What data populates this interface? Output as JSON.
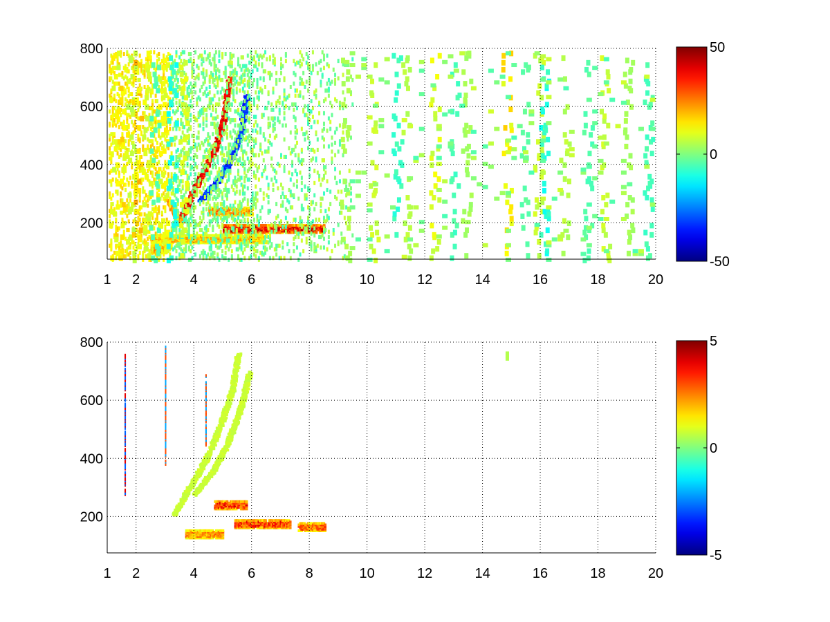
{
  "chart_data": [
    {
      "type": "heatmap",
      "title": "",
      "xlabel": "",
      "ylabel": "",
      "xlim": [
        1,
        20
      ],
      "ylim": [
        75,
        800
      ],
      "x_ticks": [
        1,
        2,
        4,
        6,
        8,
        10,
        12,
        14,
        16,
        18,
        20
      ],
      "y_ticks": [
        200,
        400,
        600,
        800
      ],
      "grid": true,
      "colormap": "jet",
      "colorbar": {
        "min": -50,
        "max": 50,
        "ticks": [
          50,
          0,
          -50
        ],
        "position": "right"
      },
      "features": [
        {
          "kind": "ridge",
          "value": 40,
          "points": [
            [
              3.5,
              210
            ],
            [
              3.9,
              300
            ],
            [
              4.3,
              380
            ],
            [
              4.7,
              460
            ],
            [
              5.0,
              560
            ],
            [
              5.2,
              700
            ]
          ]
        },
        {
          "kind": "ridge",
          "value": 25,
          "points": [
            [
              3.1,
              280
            ],
            [
              3.4,
              220
            ],
            [
              3.6,
              210
            ]
          ]
        },
        {
          "kind": "ridge",
          "value": -35,
          "points": [
            [
              4.2,
              280
            ],
            [
              4.8,
              350
            ],
            [
              5.3,
              430
            ],
            [
              5.6,
              520
            ],
            [
              5.8,
              640
            ]
          ]
        },
        {
          "kind": "band",
          "value": 25,
          "x": [
            4.5,
            6.0
          ],
          "y": 245
        },
        {
          "kind": "band",
          "value": 40,
          "x": [
            5.0,
            8.5
          ],
          "y": 185
        },
        {
          "kind": "band",
          "value": 20,
          "x": [
            2.5,
            6.5
          ],
          "y": 150
        },
        {
          "kind": "band",
          "value": 25,
          "x": [
            2.5,
            3.0
          ],
          "y": 115
        }
      ],
      "sparse_columns": {
        "x_range": [
          1,
          20
        ],
        "values": [
          [
            1.2,
            12
          ],
          [
            1.5,
            15
          ],
          [
            1.8,
            8
          ],
          [
            2.0,
            18
          ],
          [
            2.3,
            10
          ],
          [
            2.6,
            -5
          ],
          [
            2.9,
            12
          ],
          [
            3.2,
            -10
          ],
          [
            3.6,
            10
          ],
          [
            9.2,
            5
          ],
          [
            10.2,
            8
          ],
          [
            11.0,
            -8
          ],
          [
            11.3,
            6
          ],
          [
            12.3,
            10
          ],
          [
            13.0,
            -6
          ],
          [
            13.4,
            4
          ],
          [
            14.8,
            15
          ],
          [
            15.4,
            -4
          ],
          [
            15.9,
            8
          ],
          [
            16.1,
            -10
          ],
          [
            16.8,
            6
          ],
          [
            17.6,
            -5
          ],
          [
            18.2,
            8
          ],
          [
            19.0,
            4
          ],
          [
            19.7,
            -6
          ]
        ]
      }
    },
    {
      "type": "heatmap",
      "title": "",
      "xlabel": "",
      "ylabel": "",
      "xlim": [
        1,
        20
      ],
      "ylim": [
        75,
        800
      ],
      "x_ticks": [
        1,
        2,
        4,
        6,
        8,
        10,
        12,
        14,
        16,
        18,
        20
      ],
      "y_ticks": [
        200,
        400,
        600,
        800
      ],
      "grid": true,
      "colormap": "jet",
      "colorbar": {
        "min": -5,
        "max": 5,
        "ticks": [
          5,
          0,
          -5
        ],
        "position": "right"
      },
      "features": [
        {
          "kind": "ridge",
          "value": 0.8,
          "points": [
            [
              3.3,
              210
            ],
            [
              3.8,
              300
            ],
            [
              4.4,
              400
            ],
            [
              4.9,
              520
            ],
            [
              5.3,
              640
            ],
            [
              5.5,
              760
            ]
          ]
        },
        {
          "kind": "ridge",
          "value": 0.8,
          "points": [
            [
              4.0,
              280
            ],
            [
              4.7,
              370
            ],
            [
              5.2,
              470
            ],
            [
              5.6,
              580
            ],
            [
              5.9,
              700
            ]
          ]
        },
        {
          "kind": "band",
          "value": 3.5,
          "x": [
            4.7,
            5.8
          ],
          "y": 245
        },
        {
          "kind": "band",
          "value": 3.5,
          "x": [
            5.4,
            7.3
          ],
          "y": 180
        },
        {
          "kind": "band",
          "value": 3.0,
          "x": [
            7.6,
            8.5
          ],
          "y": 170
        },
        {
          "kind": "band",
          "value": 2.5,
          "x": [
            3.7,
            5.0
          ],
          "y": 145
        }
      ],
      "vertical_streaks": [
        [
          1.6,
          280,
          760,
          4
        ],
        [
          3.0,
          380,
          790,
          3
        ],
        [
          4.4,
          450,
          700,
          3
        ]
      ],
      "isolated_patches": [
        [
          14.8,
          760,
          0.5
        ]
      ]
    }
  ]
}
